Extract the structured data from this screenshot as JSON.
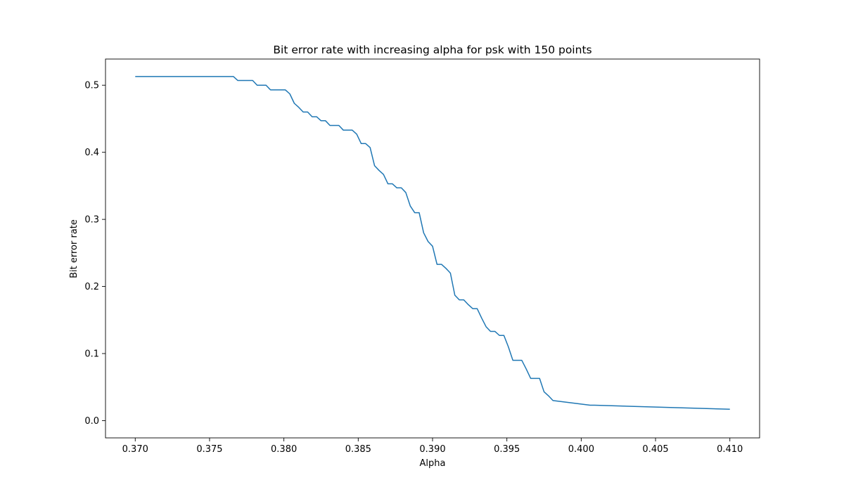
{
  "chart_data": {
    "type": "line",
    "title": "Bit error rate with increasing alpha for psk with 150 points",
    "xlabel": "Alpha",
    "ylabel": "Bit error rate",
    "xlim": [
      0.368,
      0.412
    ],
    "ylim": [
      -0.0257,
      0.539
    ],
    "xticks": [
      0.37,
      0.375,
      0.38,
      0.385,
      0.39,
      0.395,
      0.4,
      0.405,
      0.41
    ],
    "xtick_labels": [
      "0.370",
      "0.375",
      "0.380",
      "0.385",
      "0.390",
      "0.395",
      "0.400",
      "0.405",
      "0.410"
    ],
    "yticks": [
      0.0,
      0.1,
      0.2,
      0.3,
      0.4,
      0.5
    ],
    "ytick_labels": [
      "0.0",
      "0.1",
      "0.2",
      "0.3",
      "0.4",
      "0.5"
    ],
    "grid": false,
    "line_color": "#1f77b4",
    "series": [
      {
        "x": [
          0.37,
          0.3766,
          0.3769,
          0.3779,
          0.3782,
          0.3788,
          0.3791,
          0.3801,
          0.3804,
          0.3807,
          0.381,
          0.3813,
          0.3816,
          0.3819,
          0.3822,
          0.3825,
          0.3828,
          0.3831,
          0.3834,
          0.3837,
          0.384,
          0.3843,
          0.3846,
          0.3849,
          0.3852,
          0.3855,
          0.3858,
          0.3861,
          0.3864,
          0.3867,
          0.387,
          0.3873,
          0.3876,
          0.3879,
          0.3882,
          0.3885,
          0.3888,
          0.3891,
          0.3894,
          0.3897,
          0.39,
          0.3903,
          0.3906,
          0.3909,
          0.3912,
          0.3915,
          0.3918,
          0.3921,
          0.3924,
          0.3927,
          0.393,
          0.3933,
          0.3936,
          0.3939,
          0.3942,
          0.3945,
          0.3948,
          0.3951,
          0.3954,
          0.3957,
          0.396,
          0.3963,
          0.3966,
          0.3969,
          0.3972,
          0.3975,
          0.3978,
          0.3981,
          0.4006,
          0.4009,
          0.41
        ],
        "y": [
          0.513,
          0.513,
          0.507,
          0.507,
          0.5,
          0.5,
          0.493,
          0.493,
          0.487,
          0.473,
          0.467,
          0.46,
          0.46,
          0.453,
          0.453,
          0.447,
          0.447,
          0.44,
          0.44,
          0.44,
          0.433,
          0.433,
          0.433,
          0.427,
          0.413,
          0.413,
          0.407,
          0.38,
          0.373,
          0.367,
          0.353,
          0.353,
          0.347,
          0.347,
          0.34,
          0.32,
          0.31,
          0.31,
          0.28,
          0.267,
          0.26,
          0.233,
          0.233,
          0.227,
          0.22,
          0.187,
          0.18,
          0.18,
          0.173,
          0.167,
          0.167,
          0.153,
          0.14,
          0.133,
          0.133,
          0.127,
          0.127,
          0.11,
          0.09,
          0.09,
          0.09,
          0.077,
          0.063,
          0.063,
          0.063,
          0.043,
          0.037,
          0.03,
          0.023,
          0.023,
          0.017
        ]
      }
    ]
  }
}
